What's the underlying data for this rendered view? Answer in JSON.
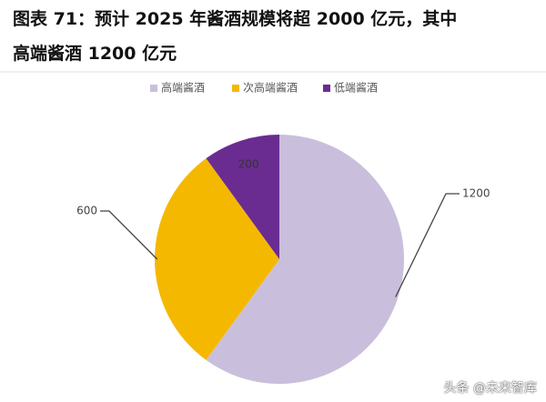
{
  "chart_data": {
    "type": "pie",
    "title": "图表 71：预计 2025 年酱酒规模将超 2000 亿元，其中\n高端酱酒 1200 亿元",
    "categories": [
      "高端酱酒",
      "次高端酱酒",
      "低端酱酒"
    ],
    "values": [
      1200,
      600,
      200
    ],
    "colors": [
      "#c9bfdc",
      "#f5b800",
      "#6b2c91"
    ],
    "legend": "top",
    "watermark": "头条 @未来智库"
  }
}
